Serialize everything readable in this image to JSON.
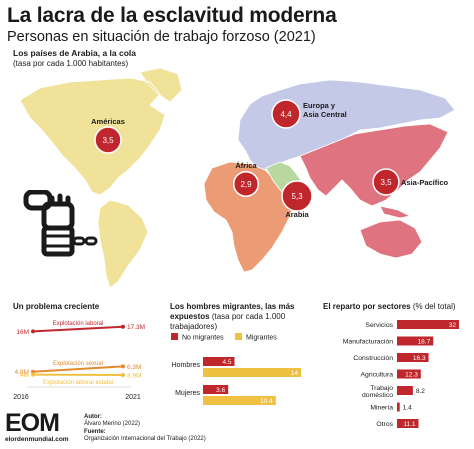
{
  "title": "La lacra de la esclavitud moderna",
  "subtitle": "Personas en situación de trabajo forzoso (2021)",
  "map": {
    "title": "Los países de Arabia, a la cola",
    "subtitle": "(tasa por cada 1.000 habitantes)"
  },
  "colors": {
    "americas": "#f1e29a",
    "europe_asia": "#c4c9e8",
    "africa": "#ec9c74",
    "arabia": "#b9d8a0",
    "asia_pacific": "#df7480",
    "bubble": "#c0272d",
    "no_migrants": "#c0272d",
    "migrants": "#f0c042"
  },
  "chart_data": [
    {
      "type": "bubble-map",
      "regions": [
        {
          "name": "Américas",
          "value": "3,5"
        },
        {
          "name": "Europa y Asia Central",
          "value": "4,4"
        },
        {
          "name": "África",
          "value": "2,9"
        },
        {
          "name": "Arabia",
          "value": "5,3"
        },
        {
          "name": "Asia-Pacífico",
          "value": "3,5"
        }
      ]
    },
    {
      "type": "line",
      "title": "Un problema creciente",
      "x": [
        2016,
        2021
      ],
      "x_labels": [
        "2016",
        "2021"
      ],
      "series": [
        {
          "name": "Explotación laboral",
          "values": [
            16,
            17.3
          ],
          "start_label": "16M",
          "end_label": "17.3M",
          "color": "#c0272d"
        },
        {
          "name": "Explotación sexual",
          "values": [
            4.8,
            6.3
          ],
          "start_label": "4.8M",
          "end_label": "6.3M",
          "color": "#e38a2e"
        },
        {
          "name": "Explotación laboral estatal",
          "values": [
            4.0,
            3.9
          ],
          "start_label": "4M",
          "end_label": "3.9M",
          "color": "#f0c042"
        }
      ]
    },
    {
      "type": "bar",
      "title": "Los hombres migrantes, las más expuestos",
      "subtitle": "(tasa por cada 1.000 trabajadores)",
      "legend": [
        "No migrantes",
        "Migrantes"
      ],
      "categories": [
        "Hombres",
        "Mujeres"
      ],
      "series": [
        {
          "name": "No migrantes",
          "values": [
            4.5,
            3.6
          ],
          "labels": [
            "4.5",
            "3.6"
          ]
        },
        {
          "name": "Migrantes",
          "values": [
            14,
            10.4
          ],
          "labels": [
            "14",
            "10.4"
          ]
        }
      ]
    },
    {
      "type": "bar",
      "title": "El reparto por sectores",
      "subtitle": "(% del total)",
      "categories": [
        "Servicios",
        "Manufacturación",
        "Construcción",
        "Agricultura",
        "Trabajo doméstico",
        "Minería",
        "Otros"
      ],
      "values": [
        32,
        18.7,
        16.3,
        12.3,
        8.2,
        1.4,
        11.1
      ],
      "labels": [
        "32",
        "18.7",
        "16.3",
        "12.3",
        "8.2",
        "1.4",
        "11.1"
      ]
    }
  ],
  "footer": {
    "logo": "EOM",
    "url": "elordenmundial.com",
    "author_label": "Autor:",
    "author": "Álvaro Merino (2022)",
    "source_label": "Fuente:",
    "source": "Organización Internacional del Trabajo (2022)"
  }
}
